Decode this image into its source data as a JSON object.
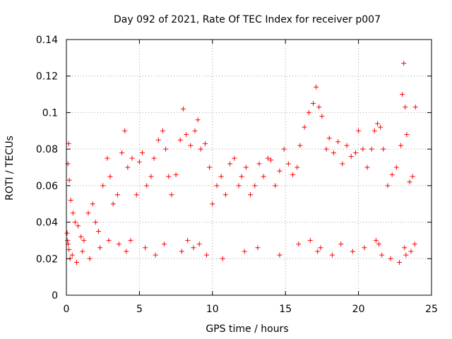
{
  "chart_data": {
    "type": "scatter",
    "title": "Day 092 of 2021, Rate Of TEC Index for receiver p007",
    "xlabel": "GPS time / hours",
    "ylabel": "ROTI / TECUs",
    "xlim": [
      0,
      25
    ],
    "ylim": [
      0,
      0.14
    ],
    "xticks": [
      0,
      5,
      10,
      15,
      20,
      25
    ],
    "xtick_labels": [
      "0",
      "5",
      "10",
      "15",
      "20",
      "25"
    ],
    "yticks": [
      0,
      0.02,
      0.04,
      0.06,
      0.08,
      0.1,
      0.12,
      0.14
    ],
    "ytick_labels": [
      "0",
      "0.02",
      "0.04",
      "0.06",
      "0.08",
      "0.1",
      "0.12",
      "0.14"
    ],
    "grid": true,
    "marker": "+",
    "color": "#ff0000",
    "series": [
      {
        "name": "ROTI",
        "x": [
          0.05,
          0.1,
          0.15,
          0.2,
          0.3,
          0.45,
          0.6,
          0.8,
          1.0,
          1.2,
          1.5,
          1.8,
          2.0,
          2.2,
          2.5,
          2.8,
          3.0,
          3.2,
          3.5,
          3.8,
          4.0,
          4.2,
          4.5,
          4.8,
          5.0,
          5.2,
          5.5,
          5.8,
          6.0,
          6.3,
          6.6,
          6.8,
          7.0,
          7.2,
          7.5,
          7.8,
          8.0,
          8.2,
          8.5,
          8.8,
          9.0,
          9.2,
          9.5,
          9.8,
          10.0,
          10.3,
          10.6,
          10.9,
          11.2,
          11.5,
          11.8,
          12.0,
          12.3,
          12.6,
          12.9,
          13.2,
          13.5,
          13.8,
          14.0,
          14.3,
          14.6,
          14.9,
          15.2,
          15.5,
          15.8,
          16.0,
          16.3,
          16.6,
          16.9,
          17.1,
          17.3,
          17.5,
          17.8,
          18.0,
          18.3,
          18.6,
          18.9,
          19.2,
          19.5,
          19.8,
          20.0,
          20.3,
          20.6,
          20.9,
          21.1,
          21.3,
          21.5,
          21.7,
          22.0,
          22.3,
          22.6,
          22.9,
          23.0,
          23.1,
          23.2,
          23.3,
          23.5,
          23.7,
          23.9,
          0.08,
          0.12,
          0.18,
          0.25,
          0.4,
          0.7,
          1.1,
          1.6,
          2.3,
          2.9,
          3.6,
          4.1,
          4.4,
          5.4,
          6.1,
          6.7,
          7.9,
          8.3,
          8.7,
          9.1,
          9.6,
          10.7,
          12.2,
          13.1,
          14.6,
          15.9,
          16.7,
          17.2,
          17.4,
          18.2,
          18.8,
          19.6,
          20.4,
          21.2,
          21.4,
          21.6,
          22.2,
          22.8,
          23.15,
          23.25,
          23.6,
          23.85
        ],
        "y": [
          0.034,
          0.072,
          0.083,
          0.063,
          0.052,
          0.045,
          0.04,
          0.038,
          0.032,
          0.03,
          0.045,
          0.05,
          0.04,
          0.035,
          0.06,
          0.075,
          0.065,
          0.05,
          0.055,
          0.078,
          0.09,
          0.07,
          0.075,
          0.055,
          0.073,
          0.078,
          0.06,
          0.065,
          0.075,
          0.085,
          0.09,
          0.08,
          0.065,
          0.055,
          0.066,
          0.085,
          0.102,
          0.088,
          0.082,
          0.09,
          0.096,
          0.08,
          0.083,
          0.07,
          0.05,
          0.06,
          0.065,
          0.055,
          0.072,
          0.075,
          0.06,
          0.065,
          0.07,
          0.055,
          0.06,
          0.072,
          0.065,
          0.075,
          0.074,
          0.06,
          0.068,
          0.08,
          0.072,
          0.066,
          0.07,
          0.082,
          0.092,
          0.1,
          0.105,
          0.114,
          0.103,
          0.098,
          0.08,
          0.086,
          0.078,
          0.084,
          0.072,
          0.082,
          0.076,
          0.078,
          0.09,
          0.08,
          0.07,
          0.08,
          0.09,
          0.094,
          0.092,
          0.08,
          0.06,
          0.066,
          0.07,
          0.082,
          0.11,
          0.127,
          0.103,
          0.088,
          0.062,
          0.065,
          0.103,
          0.03,
          0.028,
          0.025,
          0.02,
          0.022,
          0.018,
          0.024,
          0.02,
          0.026,
          0.03,
          0.028,
          0.024,
          0.03,
          0.026,
          0.022,
          0.028,
          0.024,
          0.03,
          0.026,
          0.028,
          0.022,
          0.02,
          0.024,
          0.026,
          0.022,
          0.028,
          0.03,
          0.024,
          0.026,
          0.022,
          0.028,
          0.024,
          0.026,
          0.03,
          0.028,
          0.022,
          0.02,
          0.018,
          0.026,
          0.022,
          0.024,
          0.028
        ]
      }
    ]
  }
}
